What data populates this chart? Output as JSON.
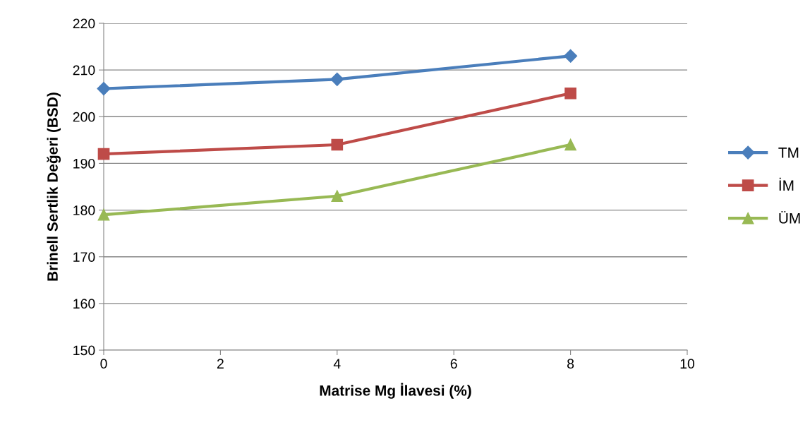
{
  "chart_data": {
    "type": "line",
    "xlabel": "Matrise Mg İlavesi (%)",
    "ylabel": "Brinell Sertlik Değeri (BSD)",
    "x": [
      0,
      4,
      8
    ],
    "series": [
      {
        "name": "TM",
        "color": "#4a7ebb",
        "marker": "diamond",
        "values": [
          206,
          208,
          213
        ]
      },
      {
        "name": "İM",
        "color": "#be4b48",
        "marker": "square",
        "values": [
          192,
          194,
          205
        ]
      },
      {
        "name": "ÜM",
        "color": "#98b954",
        "marker": "triangle",
        "values": [
          179,
          183,
          194
        ]
      }
    ],
    "xlim": [
      0,
      10
    ],
    "xticks": [
      0,
      2,
      4,
      6,
      8,
      10
    ],
    "ylim": [
      150,
      220
    ],
    "yticks": [
      150,
      160,
      170,
      180,
      190,
      200,
      210,
      220
    ],
    "grid": "y",
    "legend": "right",
    "line_style": "solid"
  }
}
